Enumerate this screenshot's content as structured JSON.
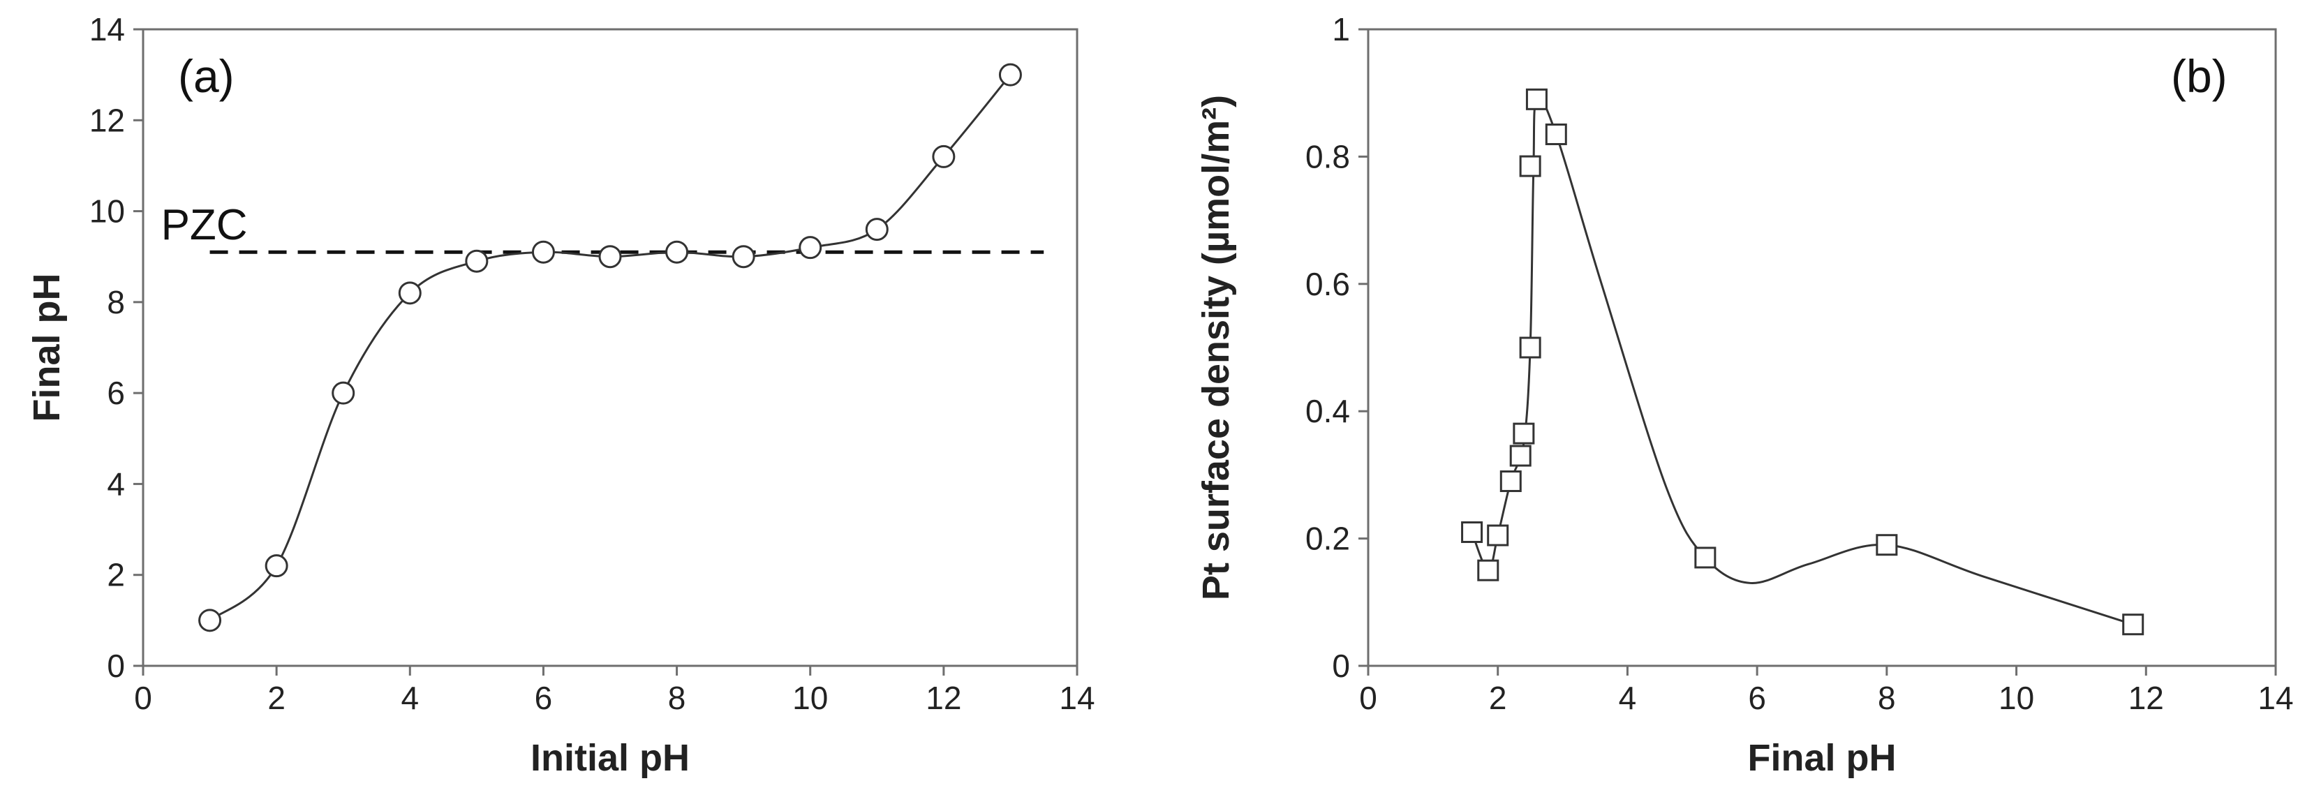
{
  "chart_data": [
    {
      "type": "line",
      "panel_label": "(a)",
      "xlabel": "Initial pH",
      "ylabel": "Final pH",
      "xlim": [
        0,
        14
      ],
      "ylim": [
        0,
        14
      ],
      "xticks": [
        0,
        2,
        4,
        6,
        8,
        10,
        12,
        14
      ],
      "yticks": [
        0,
        2,
        4,
        6,
        8,
        10,
        12,
        14
      ],
      "series": [
        {
          "marker": "circle",
          "smooth": true,
          "x": [
            1,
            2,
            3,
            4,
            5,
            6,
            7,
            8,
            9,
            10,
            11,
            12,
            13
          ],
          "y": [
            1.0,
            2.2,
            6.0,
            8.2,
            8.9,
            9.1,
            9.0,
            9.1,
            9.0,
            9.2,
            9.6,
            11.2,
            13.0
          ]
        }
      ],
      "reference_line": {
        "label": "PZC",
        "y": 9.1,
        "x_range": [
          1,
          13.5
        ],
        "style": "dashed"
      }
    },
    {
      "type": "scatter",
      "panel_label": "(b)",
      "xlabel": "Final pH",
      "ylabel": "Pt surface density (µmol/m²)",
      "xlim": [
        0,
        14
      ],
      "ylim": [
        0,
        1
      ],
      "xticks": [
        0,
        2,
        4,
        6,
        8,
        10,
        12,
        14
      ],
      "yticks": [
        0,
        0.2,
        0.4,
        0.6,
        0.8,
        1
      ],
      "series": [
        {
          "marker": "square",
          "x": [
            1.6,
            1.85,
            2.0,
            2.2,
            2.35,
            2.4,
            2.5,
            2.5,
            2.6,
            2.9,
            5.2,
            8.0,
            11.8
          ],
          "y": [
            0.21,
            0.15,
            0.205,
            0.29,
            0.33,
            0.365,
            0.5,
            0.785,
            0.89,
            0.835,
            0.17,
            0.19,
            0.065
          ]
        }
      ],
      "fit_curve": {
        "smooth": true,
        "x": [
          1.6,
          1.85,
          2.0,
          2.2,
          2.4,
          2.5,
          2.55,
          2.6,
          2.9,
          3.6,
          4.6,
          5.2,
          5.9,
          6.8,
          8.0,
          9.5,
          11.8
        ],
        "y": [
          0.21,
          0.15,
          0.205,
          0.29,
          0.35,
          0.5,
          0.78,
          0.89,
          0.835,
          0.6,
          0.28,
          0.17,
          0.13,
          0.16,
          0.19,
          0.14,
          0.065
        ]
      }
    }
  ]
}
